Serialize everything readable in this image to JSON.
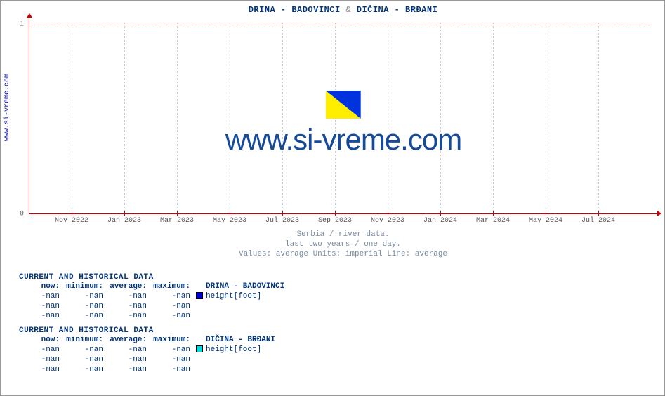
{
  "side_label": "www.si-vreme.com",
  "chart": {
    "type": "line",
    "title_parts": [
      "DRINA -  BADOVINCI",
      "&",
      "DIČINA -  BRĐANI"
    ],
    "ylim": [
      0,
      1
    ],
    "yticks": [
      0,
      1
    ],
    "xticks": [
      "Nov 2022",
      "Jan 2023",
      "Mar 2023",
      "May 2023",
      "Jul 2023",
      "Sep 2023",
      "Nov 2023",
      "Jan 2024",
      "Mar 2024",
      "May 2024",
      "Jul 2024"
    ],
    "axis_color": "#cc0000",
    "grid_color_h": "#ff9999",
    "grid_color_v": "#cccccc",
    "background_color": "#ffffff",
    "watermark_text": "www.si-vreme.com",
    "watermark_color": "#164a9a",
    "watermark_fontsize": 42,
    "logo_colors": [
      "#ffee00",
      "#0033dd"
    ],
    "series": []
  },
  "subcaption": {
    "line1": "Serbia / river data.",
    "line2": "last two years / one day.",
    "line3": "Values: average  Units: imperial  Line: average"
  },
  "blocks": [
    {
      "title": "CURRENT AND HISTORICAL DATA",
      "headers": [
        "now:",
        "minimum:",
        "average:",
        "maximum:"
      ],
      "station": "DRINA -  BADOVINCI",
      "swatch_color": "#0000cc",
      "metric": "height[foot]",
      "rows": [
        [
          "-nan",
          "-nan",
          "-nan",
          "-nan"
        ],
        [
          "-nan",
          "-nan",
          "-nan",
          "-nan"
        ],
        [
          "-nan",
          "-nan",
          "-nan",
          "-nan"
        ]
      ]
    },
    {
      "title": "CURRENT AND HISTORICAL DATA",
      "headers": [
        "now:",
        "minimum:",
        "average:",
        "maximum:"
      ],
      "station": "DIČINA -  BRĐANI",
      "swatch_color": "#00dddd",
      "metric": "height[foot]",
      "rows": [
        [
          "-nan",
          "-nan",
          "-nan",
          "-nan"
        ],
        [
          "-nan",
          "-nan",
          "-nan",
          "-nan"
        ],
        [
          "-nan",
          "-nan",
          "-nan",
          "-nan"
        ]
      ]
    }
  ]
}
